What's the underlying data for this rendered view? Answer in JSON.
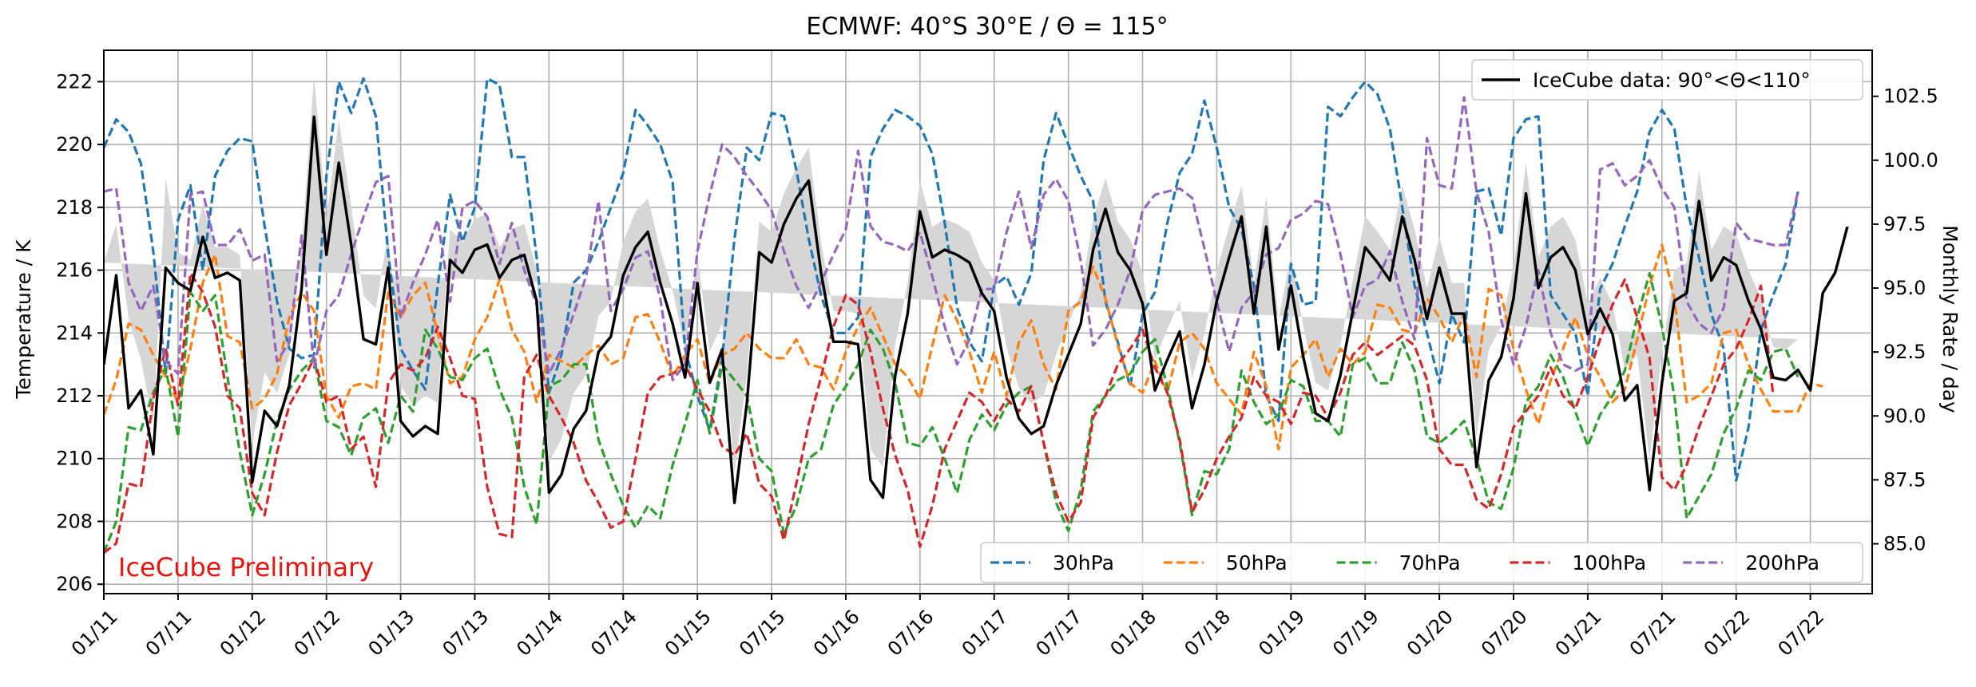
{
  "chart_data": {
    "type": "line",
    "title": "ECMWF: 40°S 30°E / Θ = 115°",
    "ylabel": "Temperature / K",
    "y2label": "Monthly Rate / day",
    "watermark": "IceCube Preliminary",
    "watermark_color": "#e8150f",
    "grid": true,
    "ylim": [
      205.7,
      223.0
    ],
    "y2lim": [
      83.05,
      104.3
    ],
    "yticks": [
      206,
      208,
      210,
      212,
      214,
      216,
      218,
      220,
      222
    ],
    "y2ticks": [
      85.0,
      87.5,
      90.0,
      92.5,
      95.0,
      97.5,
      100.0,
      102.5
    ],
    "x_start": "2011-01",
    "x_end": "2022-12",
    "xticks": [
      "01/11",
      "07/11",
      "01/12",
      "07/12",
      "01/13",
      "07/13",
      "01/14",
      "07/14",
      "01/15",
      "07/15",
      "01/16",
      "07/16",
      "01/17",
      "07/17",
      "01/18",
      "07/18",
      "01/19",
      "07/19",
      "01/20",
      "07/20",
      "01/21",
      "07/21",
      "01/22",
      "07/22"
    ],
    "series": [
      {
        "name": "30hPa",
        "color": "#1f77b4",
        "style": "dashed",
        "values": [
          219.9,
          220.8,
          220.4,
          219.4,
          216.6,
          212.7,
          217.6,
          218.7,
          216.0,
          219.0,
          219.8,
          220.2,
          220.1,
          217.4,
          215.0,
          213.5,
          213.2,
          213.3,
          219.0,
          222.0,
          221.0,
          222.1,
          220.9,
          216.5,
          213.5,
          212.8,
          212.2,
          215.5,
          218.4,
          216.9,
          218.0,
          222.1,
          221.9,
          219.6,
          219.6,
          216.4,
          212.1,
          213.3,
          215.6,
          216.0,
          216.9,
          218.0,
          219.1,
          221.1,
          220.6,
          220.0,
          218.8,
          213.5,
          212.0,
          210.9,
          213.2,
          217.0,
          219.9,
          219.5,
          221.0,
          220.9,
          219.2,
          217.0,
          215.2,
          214.0,
          214.0,
          214.5,
          219.6,
          220.5,
          221.1,
          220.9,
          220.6,
          219.7,
          217.5,
          214.8,
          213.7,
          213.1,
          215.5,
          215.8,
          214.9,
          215.9,
          219.5,
          221.0,
          220.0,
          219.0,
          218.2,
          215.0,
          213.7,
          212.3,
          214.6,
          215.3,
          217.5,
          219.1,
          219.7,
          221.4,
          219.9,
          218.0,
          217.3,
          215.5,
          212.0,
          211.2,
          216.2,
          214.9,
          215.0,
          221.2,
          220.9,
          221.5,
          222.0,
          221.6,
          220.5,
          218.0,
          215.5,
          214.0,
          212.4,
          214.6,
          213.7,
          218.5,
          218.6,
          217.1,
          220.2,
          220.8,
          220.9,
          215.2,
          214.6,
          214.0,
          212.0,
          215.4,
          216.2,
          217.4,
          218.5,
          220.4,
          221.1,
          220.5,
          218.0,
          216.4,
          214.6,
          213.5,
          209.3,
          211.0,
          214.1,
          215.2,
          216.2,
          218.5
        ]
      },
      {
        "name": "50hPa",
        "color": "#ff7f0e",
        "style": "dashed",
        "values": [
          211.4,
          212.5,
          214.3,
          214.1,
          213.3,
          212.6,
          211.8,
          213.5,
          215.6,
          216.5,
          213.9,
          213.7,
          211.6,
          211.9,
          212.7,
          214.5,
          215.3,
          214.7,
          212.0,
          211.3,
          212.3,
          212.4,
          212.2,
          215.3,
          214.5,
          215.2,
          215.6,
          214.0,
          212.4,
          212.6,
          213.8,
          214.5,
          215.7,
          214.1,
          213.4,
          211.8,
          213.3,
          213.1,
          212.9,
          213.3,
          213.6,
          213.0,
          213.2,
          214.5,
          214.6,
          213.7,
          212.6,
          213.3,
          213.8,
          212.4,
          213.3,
          213.5,
          214.0,
          213.5,
          213.2,
          213.2,
          213.8,
          213.0,
          212.9,
          212.2,
          213.4,
          214.2,
          214.8,
          213.9,
          213.0,
          212.6,
          211.9,
          213.6,
          215.2,
          214.4,
          213.4,
          212.1,
          213.4,
          212.0,
          213.7,
          214.4,
          213.0,
          212.2,
          214.7,
          215.0,
          216.1,
          215.1,
          213.6,
          212.4,
          212.1,
          213.1,
          212.1,
          213.7,
          214.0,
          213.5,
          212.4,
          211.9,
          211.4,
          213.4,
          212.3,
          210.3,
          212.9,
          213.3,
          213.8,
          212.6,
          213.5,
          213.0,
          213.4,
          214.9,
          214.8,
          214.1,
          214.0,
          215.1,
          214.5,
          213.7,
          214.6,
          212.6,
          215.4,
          215.2,
          213.5,
          212.2,
          211.1,
          212.5,
          213.5,
          214.5,
          213.3,
          212.6,
          211.8,
          212.2,
          213.8,
          215.5,
          216.8,
          215.1,
          211.8,
          212.0,
          212.4,
          214.0,
          214.1,
          213.0,
          212.2,
          211.5,
          211.5,
          211.5,
          212.4,
          212.3
        ]
      },
      {
        "name": "70hPa",
        "color": "#2ca02c",
        "style": "dashed",
        "values": [
          207.0,
          208.0,
          211.0,
          210.9,
          212.1,
          212.9,
          210.7,
          215.3,
          214.7,
          215.2,
          212.6,
          210.2,
          208.2,
          209.5,
          211.2,
          212.2,
          212.8,
          213.2,
          211.2,
          211.0,
          210.1,
          211.3,
          211.6,
          210.5,
          212.0,
          211.5,
          214.1,
          213.5,
          212.6,
          212.5,
          213.2,
          213.5,
          212.2,
          211.3,
          209.1,
          207.9,
          212.3,
          212.5,
          213.0,
          213.0,
          210.6,
          209.5,
          208.5,
          207.8,
          208.5,
          208.1,
          209.8,
          211.1,
          212.5,
          210.8,
          213.0,
          212.5,
          212.0,
          210.0,
          209.6,
          207.6,
          208.5,
          210.0,
          210.3,
          211.7,
          212.3,
          213.0,
          214.1,
          213.5,
          212.4,
          210.5,
          210.4,
          211.0,
          210.0,
          208.9,
          210.6,
          211.4,
          210.9,
          211.7,
          212.1,
          212.3,
          210.5,
          208.6,
          207.7,
          209.0,
          211.5,
          212.0,
          212.5,
          212.7,
          213.4,
          213.8,
          212.3,
          210.5,
          208.2,
          209.6,
          209.5,
          210.3,
          212.8,
          211.8,
          211.1,
          211.4,
          212.5,
          212.3,
          211.2,
          211.2,
          210.7,
          213.0,
          213.2,
          212.4,
          212.4,
          213.7,
          212.8,
          210.7,
          210.5,
          210.8,
          211.2,
          210.0,
          208.6,
          208.4,
          209.7,
          211.8,
          212.3,
          213.3,
          212.6,
          211.5,
          210.4,
          211.4,
          212.0,
          212.8,
          214.5,
          215.9,
          214.2,
          212.0,
          208.1,
          208.8,
          209.5,
          210.8,
          211.6,
          212.8,
          212.5,
          213.4,
          213.5,
          212.6
        ]
      },
      {
        "name": "100hPa",
        "color": "#d62728",
        "style": "dashed",
        "values": [
          207.0,
          207.3,
          209.2,
          209.1,
          211.9,
          213.5,
          211.7,
          215.9,
          215.3,
          214.2,
          212.0,
          211.6,
          208.9,
          208.2,
          210.2,
          211.7,
          212.4,
          213.2,
          211.8,
          212.0,
          210.3,
          210.7,
          209.1,
          212.4,
          213.0,
          212.8,
          213.2,
          214.2,
          213.2,
          212.0,
          211.9,
          209.1,
          207.6,
          207.5,
          212.6,
          213.3,
          212.0,
          211.3,
          210.5,
          209.3,
          208.6,
          207.8,
          208.0,
          210.0,
          212.1,
          212.6,
          212.7,
          213.0,
          212.2,
          211.5,
          210.4,
          210.1,
          210.8,
          209.2,
          208.8,
          207.4,
          209.2,
          211.1,
          212.6,
          214.2,
          215.2,
          214.9,
          213.4,
          211.6,
          210.1,
          209.0,
          207.2,
          208.5,
          210.3,
          211.2,
          212.1,
          211.8,
          211.2,
          211.9,
          211.5,
          212.3,
          210.5,
          208.9,
          208.0,
          208.6,
          211.3,
          212.0,
          213.0,
          213.5,
          214.1,
          212.9,
          212.1,
          210.6,
          208.3,
          209.0,
          210.0,
          210.7,
          211.3,
          212.6,
          212.0,
          211.8,
          211.1,
          212.1,
          212.0,
          211.3,
          212.1,
          213.3,
          213.7,
          213.3,
          213.6,
          213.9,
          213.6,
          212.5,
          210.3,
          209.8,
          209.8,
          208.7,
          208.4,
          209.5,
          211.0,
          211.5,
          212.0,
          212.9,
          212.0,
          211.6,
          212.6,
          213.8,
          214.9,
          215.7,
          214.5,
          213.2,
          209.4,
          209.0,
          209.8,
          211.0,
          212.0,
          213.0,
          213.5,
          214.4,
          215.5,
          212.0
        ]
      },
      {
        "name": "200hPa",
        "color": "#9467bd",
        "style": "dashed",
        "values": [
          218.5,
          218.6,
          215.6,
          214.7,
          215.5,
          213.1,
          212.7,
          218.4,
          218.5,
          216.8,
          216.8,
          217.3,
          216.3,
          216.5,
          213.1,
          213.7,
          217.1,
          212.9,
          214.7,
          215.2,
          216.5,
          217.7,
          218.8,
          219.0,
          214.5,
          215.6,
          216.5,
          217.6,
          215.0,
          218.0,
          218.2,
          217.7,
          216.2,
          217.5,
          216.0,
          214.9,
          212.7,
          213.5,
          214.6,
          215.8,
          218.2,
          214.7,
          215.4,
          216.4,
          216.6,
          215.1,
          212.5,
          213.0,
          216.6,
          218.4,
          220.0,
          219.6,
          219.0,
          218.5,
          217.9,
          216.6,
          215.5,
          214.8,
          215.6,
          216.5,
          217.3,
          219.8,
          217.4,
          216.9,
          216.8,
          216.6,
          217.2,
          215.8,
          214.2,
          213.0,
          213.8,
          215.4,
          215.4,
          217.2,
          218.5,
          216.7,
          218.4,
          218.9,
          218.2,
          216.3,
          213.6,
          214.1,
          214.9,
          216.0,
          217.9,
          218.4,
          218.5,
          218.6,
          218.3,
          216.7,
          215.0,
          213.4,
          214.8,
          215.3,
          216.5,
          216.7,
          217.6,
          217.8,
          218.2,
          218.1,
          216.5,
          214.5,
          215.5,
          215.7,
          216.6,
          215.0,
          213.8,
          220.2,
          218.7,
          218.6,
          221.5,
          218.5,
          217.2,
          214.4,
          213.0,
          214.2,
          216.0,
          214.0,
          213.0,
          212.8,
          213.0,
          219.2,
          219.4,
          218.7,
          219.0,
          219.5,
          218.6,
          218.0,
          215.0,
          214.3,
          214.0,
          214.8,
          217.5,
          217.0,
          216.9,
          216.8,
          216.8,
          218.5
        ]
      },
      {
        "name": "IceCube data: 90°<Θ<110°",
        "color": "#000000",
        "style": "solid",
        "axis": "right",
        "values": [
          92.0,
          95.5,
          90.3,
          91.0,
          88.5,
          95.8,
          95.2,
          94.9,
          97.0,
          95.4,
          95.6,
          95.3,
          87.4,
          90.2,
          89.6,
          91.2,
          95.0,
          101.7,
          96.3,
          99.9,
          96.7,
          93.0,
          92.8,
          95.8,
          89.8,
          89.2,
          89.6,
          89.3,
          96.1,
          95.6,
          96.5,
          96.7,
          95.4,
          96.1,
          96.3,
          94.5,
          87.0,
          87.7,
          89.5,
          90.2,
          92.5,
          93.1,
          95.5,
          96.6,
          97.2,
          95.2,
          93.6,
          91.5,
          95.2,
          91.3,
          92.6,
          86.6,
          90.5,
          96.4,
          96.0,
          97.5,
          98.5,
          99.2,
          95.6,
          92.9,
          92.9,
          92.8,
          87.5,
          86.8,
          91.6,
          94.0,
          98.0,
          96.2,
          96.5,
          96.3,
          96.0,
          94.8,
          94.1,
          91.5,
          89.9,
          89.3,
          89.6,
          91.2,
          92.4,
          93.6,
          96.5,
          98.1,
          96.4,
          95.7,
          94.4,
          91.0,
          92.2,
          93.3,
          90.3,
          92.0,
          94.5,
          96.2,
          97.8,
          94.0,
          97.4,
          92.6,
          95.1,
          92.3,
          90.1,
          89.8,
          91.6,
          94.1,
          96.6,
          96.0,
          95.3,
          97.8,
          96.1,
          93.8,
          95.8,
          94.0,
          94.0,
          88.0,
          91.4,
          92.3,
          94.6,
          98.7,
          95.0,
          96.2,
          96.6,
          95.7,
          93.2,
          94.2,
          93.2,
          90.6,
          91.2,
          87.1,
          91.3,
          94.5,
          94.8,
          98.4,
          95.3,
          96.2,
          95.9,
          94.5,
          93.4,
          91.5,
          91.4,
          91.8,
          91.0,
          94.8,
          95.6,
          97.4
        ],
        "band": [
          4.0,
          2.0,
          3.5,
          1.2,
          1.2,
          3.5,
          1.2,
          1.2,
          1.3,
          1.2,
          1.0,
          1.0,
          1.5,
          1.5,
          1.3,
          1.2,
          1.6,
          1.6,
          1.4,
          1.7,
          1.5,
          1.7,
          1.4,
          1.4,
          1.4,
          1.2,
          1.2,
          1.2,
          1.2,
          1.2,
          1.2,
          1.2,
          1.2,
          1.2,
          1.2,
          1.2,
          1.2,
          1.4,
          1.4,
          1.4,
          1.4,
          1.4,
          1.3,
          1.4,
          1.3,
          1.3,
          1.3,
          1.1,
          1.1,
          1.2,
          1.0,
          1.2,
          1.1,
          1.2,
          1.2,
          1.2,
          1.2,
          1.3,
          1.2,
          1.2,
          1.2,
          1.2,
          1.2,
          1.2,
          1.2,
          1.2,
          1.2,
          1.2,
          1.2,
          1.2,
          1.2,
          1.2,
          1.2,
          1.2,
          1.2,
          1.2,
          1.2,
          1.2,
          1.2,
          1.2,
          1.2,
          1.2,
          1.2,
          1.2,
          1.2,
          1.2,
          1.2,
          1.2,
          1.2,
          1.2,
          1.2,
          1.2,
          1.2,
          1.2,
          1.2,
          1.2,
          1.2,
          1.2,
          1.2,
          1.2,
          1.2,
          1.2,
          1.2,
          1.2,
          1.2,
          1.2,
          1.2,
          1.2,
          1.2,
          1.2,
          1.2,
          1.2,
          1.2,
          1.2,
          1.2,
          1.2,
          1.2,
          1.2,
          1.2,
          1.2,
          1.2,
          1.2,
          1.2,
          1.2,
          1.2,
          1.2,
          1.2,
          1.2,
          1.2,
          1.2,
          1.2,
          1.2,
          1.2,
          1.2,
          1.2,
          1.2,
          1.2,
          1.2
        ]
      }
    ]
  }
}
